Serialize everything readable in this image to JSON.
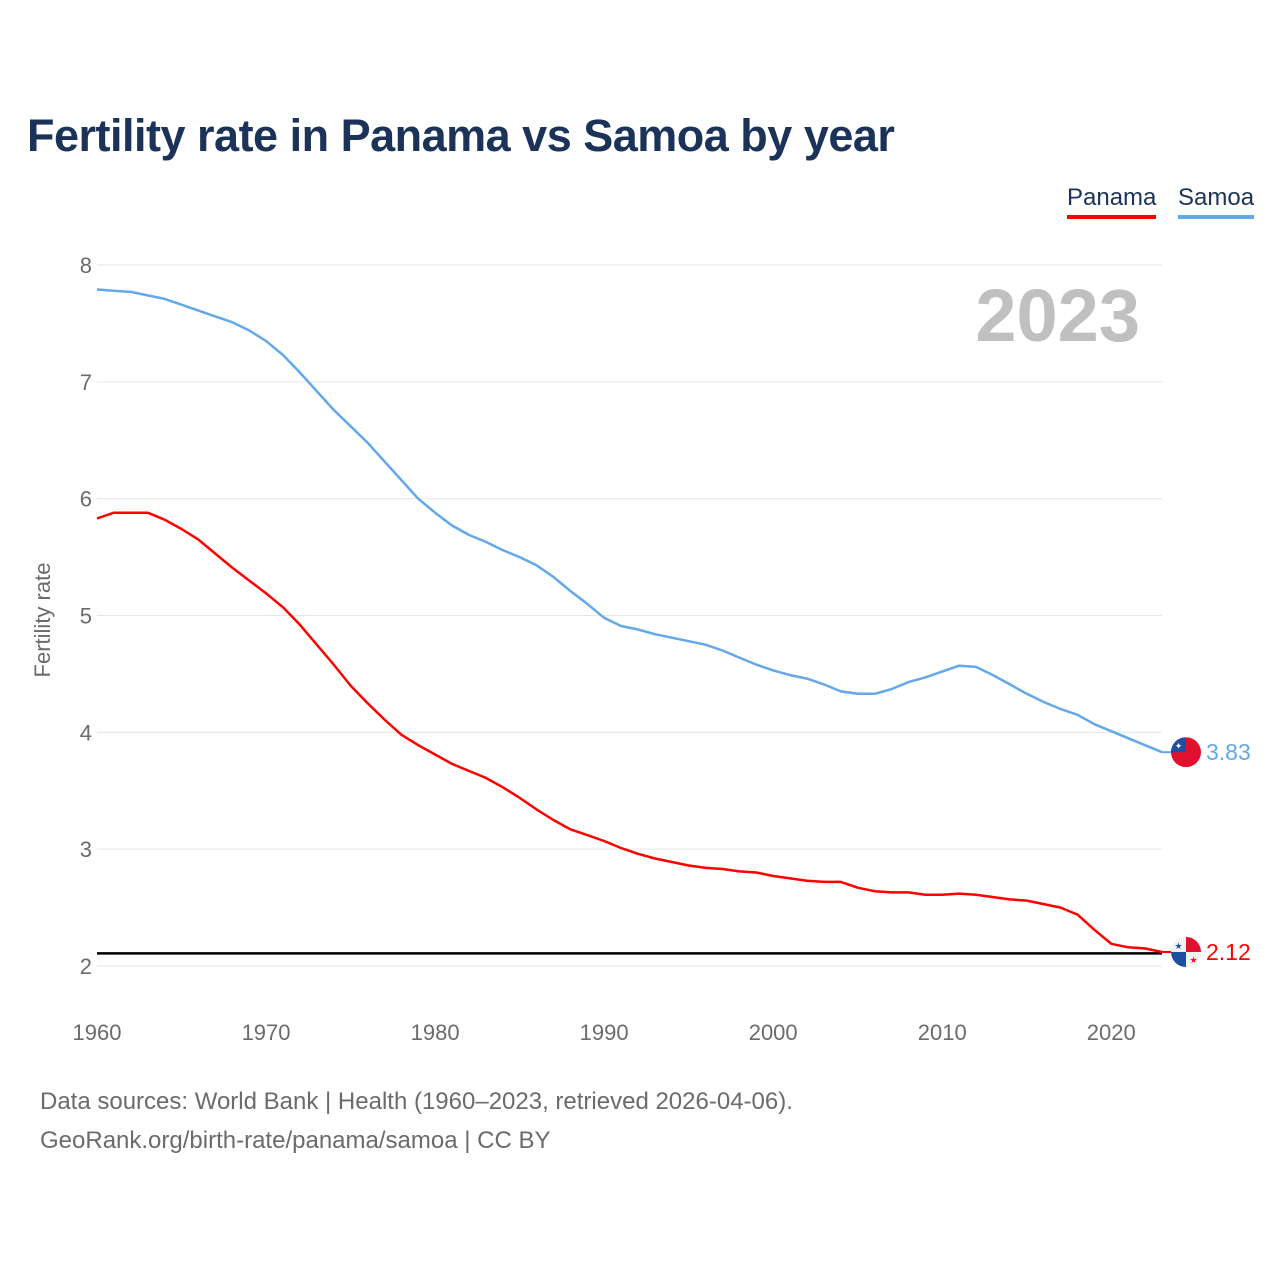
{
  "title": "Fertility rate in Panama vs Samoa by year",
  "legend": {
    "panama": "Panama",
    "samoa": "Samoa"
  },
  "source_line1": "Data sources: World Bank | Health (1960–2023, retrieved 2026-04-06).",
  "source_line2": "GeoRank.org/birth-rate/panama/samoa | CC BY",
  "chart_data": {
    "type": "line",
    "title": "Fertility rate in Panama vs Samoa by year",
    "xlabel": "",
    "ylabel": "Fertility rate",
    "year_watermark": "2023",
    "xlim": [
      1960,
      2023
    ],
    "ylim": [
      2,
      8
    ],
    "xticks": [
      1960,
      1970,
      1980,
      1990,
      2000,
      2010,
      2020
    ],
    "yticks": [
      2,
      3,
      4,
      5,
      6,
      7,
      8
    ],
    "grid": true,
    "legend_position": "top-right",
    "reference_line": 2.1,
    "x": [
      1960,
      1961,
      1962,
      1963,
      1964,
      1965,
      1966,
      1967,
      1968,
      1969,
      1970,
      1971,
      1972,
      1973,
      1974,
      1975,
      1976,
      1977,
      1978,
      1979,
      1980,
      1981,
      1982,
      1983,
      1984,
      1985,
      1986,
      1987,
      1988,
      1989,
      1990,
      1991,
      1992,
      1993,
      1994,
      1995,
      1996,
      1997,
      1998,
      1999,
      2000,
      2001,
      2002,
      2003,
      2004,
      2005,
      2006,
      2007,
      2008,
      2009,
      2010,
      2011,
      2012,
      2013,
      2014,
      2015,
      2016,
      2017,
      2018,
      2019,
      2020,
      2021,
      2022,
      2023
    ],
    "series": [
      {
        "name": "Panama",
        "color": "#ff0000",
        "end_label": "2.12",
        "values": [
          5.83,
          5.88,
          5.88,
          5.88,
          5.82,
          5.74,
          5.65,
          5.53,
          5.41,
          5.3,
          5.19,
          5.07,
          4.92,
          4.75,
          4.58,
          4.4,
          4.25,
          4.11,
          3.98,
          3.89,
          3.81,
          3.73,
          3.67,
          3.61,
          3.53,
          3.44,
          3.34,
          3.25,
          3.17,
          3.12,
          3.07,
          3.01,
          2.96,
          2.92,
          2.89,
          2.86,
          2.84,
          2.83,
          2.81,
          2.8,
          2.77,
          2.75,
          2.73,
          2.72,
          2.72,
          2.67,
          2.64,
          2.63,
          2.63,
          2.61,
          2.61,
          2.62,
          2.61,
          2.59,
          2.57,
          2.56,
          2.53,
          2.5,
          2.44,
          2.31,
          2.19,
          2.16,
          2.15,
          2.12
        ]
      },
      {
        "name": "Samoa",
        "color": "#62a8ea",
        "end_label": "3.83",
        "values": [
          7.79,
          7.78,
          7.77,
          7.74,
          7.71,
          7.66,
          7.61,
          7.56,
          7.51,
          7.44,
          7.35,
          7.23,
          7.08,
          6.92,
          6.76,
          6.62,
          6.48,
          6.32,
          6.16,
          6.0,
          5.88,
          5.77,
          5.69,
          5.63,
          5.56,
          5.5,
          5.43,
          5.33,
          5.21,
          5.1,
          4.98,
          4.91,
          4.88,
          4.84,
          4.81,
          4.78,
          4.75,
          4.7,
          4.64,
          4.58,
          4.53,
          4.49,
          4.46,
          4.41,
          4.35,
          4.33,
          4.33,
          4.37,
          4.43,
          4.47,
          4.52,
          4.57,
          4.56,
          4.49,
          4.41,
          4.33,
          4.26,
          4.2,
          4.15,
          4.07,
          4.01,
          3.95,
          3.89,
          3.83
        ]
      }
    ]
  }
}
